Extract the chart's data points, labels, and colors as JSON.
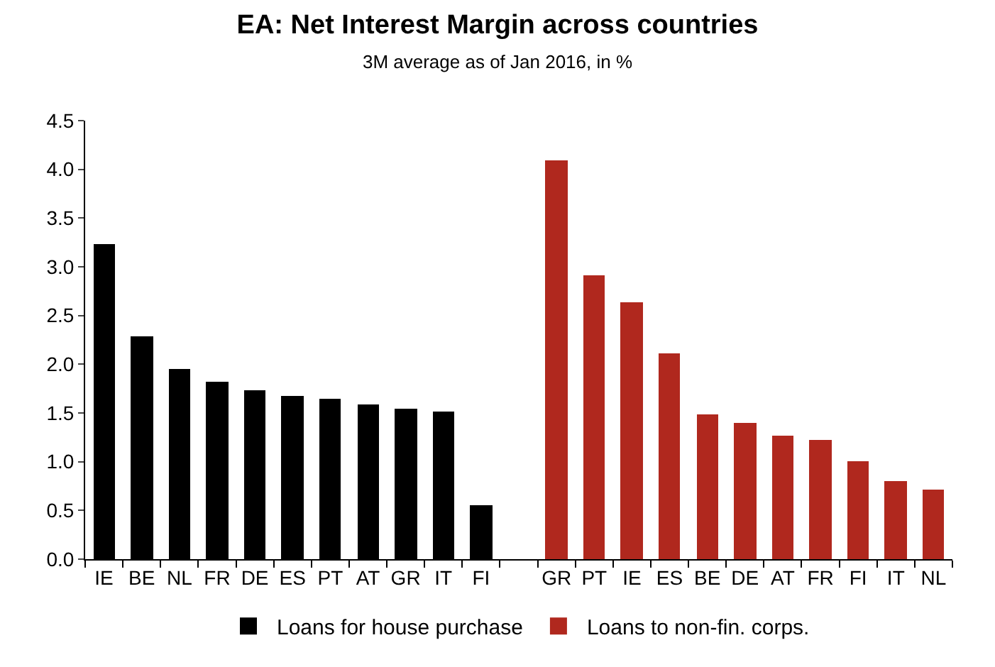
{
  "chart_data": {
    "type": "bar",
    "title": "EA: Net Interest Margin across countries",
    "subtitle": "3M average as of Jan 2016, in %",
    "categories": [
      "IE",
      "BE",
      "NL",
      "FR",
      "DE",
      "ES",
      "PT",
      "AT",
      "GR",
      "IT",
      "FI",
      null,
      "GR",
      "PT",
      "IE",
      "ES",
      "BE",
      "DE",
      "AT",
      "FR",
      "FI",
      "IT",
      "NL"
    ],
    "series": [
      {
        "name": "Loans for house purchase",
        "color": "#000000",
        "values": [
          3.23,
          2.28,
          1.95,
          1.82,
          1.73,
          1.68,
          1.65,
          1.59,
          1.54,
          1.51,
          0.56,
          null,
          null,
          null,
          null,
          null,
          null,
          null,
          null,
          null,
          null,
          null,
          null
        ]
      },
      {
        "name": "Loans to non-fin. corps.",
        "color": "#b0281e",
        "values": [
          null,
          null,
          null,
          null,
          null,
          null,
          null,
          null,
          null,
          null,
          null,
          null,
          4.09,
          2.91,
          2.63,
          2.11,
          1.49,
          1.4,
          1.26,
          1.23,
          1.01,
          0.8,
          0.72
        ]
      }
    ],
    "ylim": [
      0,
      4.5
    ],
    "yticks": [
      {
        "value": 0,
        "label": "0.0"
      },
      {
        "value": 0.5,
        "label": "0.5"
      },
      {
        "value": 1,
        "label": "1.0"
      },
      {
        "value": 1.5,
        "label": "1.5"
      },
      {
        "value": 2,
        "label": "2.0"
      },
      {
        "value": 2.5,
        "label": "2.5"
      },
      {
        "value": 3,
        "label": "3.0"
      },
      {
        "value": 3.5,
        "label": "3.5"
      },
      {
        "value": 4,
        "label": "4.0"
      },
      {
        "value": 4.5,
        "label": "4.5"
      }
    ],
    "grid": false,
    "legend": "bottom"
  }
}
